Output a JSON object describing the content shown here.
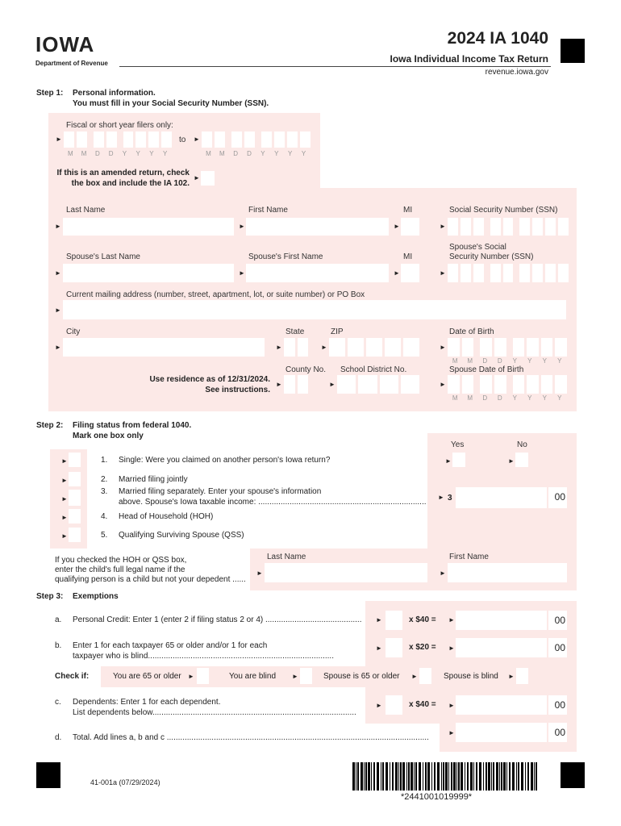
{
  "header": {
    "logo": "IOWA",
    "department": "Department of Revenue",
    "form_title": "2024 IA 1040",
    "form_subtitle": "Iowa Individual Income Tax Return",
    "website": "revenue.iowa.gov"
  },
  "step1": {
    "step": "Step 1:",
    "title": "Personal information.",
    "subtitle": "You must fill in your Social Security Number (SSN).",
    "fiscal_label": "Fiscal or short year filers only:",
    "to": "to",
    "date_letters": [
      "M",
      "M",
      "D",
      "D",
      "Y",
      "Y",
      "Y",
      "Y"
    ],
    "amended_line1": "If this is an amended return, check",
    "amended_line2": "the box and include the IA 102.",
    "last_name": "Last Name",
    "first_name": "First Name",
    "mi": "MI",
    "ssn": "Social Security Number (SSN)",
    "spouse_last_name": "Spouse's Last Name",
    "spouse_first_name": "Spouse's First Name",
    "spouse_mi": "MI",
    "spouse_ssn_line1": "Spouse's Social",
    "spouse_ssn_line2": "Security Number (SSN)",
    "address": "Current mailing address (number, street, apartment, lot, or suite number) or PO Box",
    "city": "City",
    "state": "State",
    "zip": "ZIP",
    "dob": "Date of Birth",
    "county": "County No.",
    "school": "School District No.",
    "spouse_dob": "Spouse Date of Birth",
    "residence_line1": "Use residence as of 12/31/2024.",
    "residence_line2": "See instructions."
  },
  "step2": {
    "step": "Step 2:",
    "title": "Filing status from federal 1040.",
    "subtitle": "Mark one box only",
    "yes": "Yes",
    "no": "No",
    "options": [
      {
        "num": "1.",
        "text": "Single: Were you claimed on another person's Iowa return?"
      },
      {
        "num": "2.",
        "text": "Married filing jointly"
      },
      {
        "num": "3.",
        "text": "Married filing separately. Enter your spouse's information",
        "text2": "above. Spouse's Iowa taxable income: ..........................................................................."
      },
      {
        "num": "4.",
        "text": "Head of Household (HOH)"
      },
      {
        "num": "5.",
        "text": "Qualifying Surviving Spouse (QSS)"
      }
    ],
    "line3_label": "3",
    "cents": "00",
    "hoh_line1": "If you checked the HOH or QSS box,",
    "hoh_line2": "enter the child's full legal name if the",
    "hoh_line3": "qualifying person is a child but not your depedent ......",
    "last_name": "Last Name",
    "first_name": "First Name"
  },
  "step3": {
    "step": "Step 3:",
    "title": "Exemptions",
    "a_letter": "a.",
    "a_text": "Personal Credit: Enter 1 (enter 2 if filing status 2 or 4) ...........................................",
    "a_mult": "x  $40  =",
    "b_letter": "b.",
    "b_text": "Enter 1 for each taxpayer 65 or older and/or 1 for each",
    "b_text2": "taxpayer who is blind...................................................................................",
    "b_mult": "x  $20  =",
    "check_if": "Check if:",
    "check_items": [
      "You are 65 or older",
      "You are blind",
      "Spouse is 65 or older",
      "Spouse is blind"
    ],
    "c_letter": "c.",
    "c_text": "Dependents: Enter 1 for each dependent.",
    "c_text2": "List dependents below...........................................................................................",
    "c_mult": "x  $40  =",
    "d_letter": "d.",
    "d_text": "Total. Add lines a, b and c .....................................................................................................................",
    "cents": "00"
  },
  "footer": {
    "form_number": "41-001a (07/29/2024)",
    "barcode_text": "*2441001019999*"
  }
}
